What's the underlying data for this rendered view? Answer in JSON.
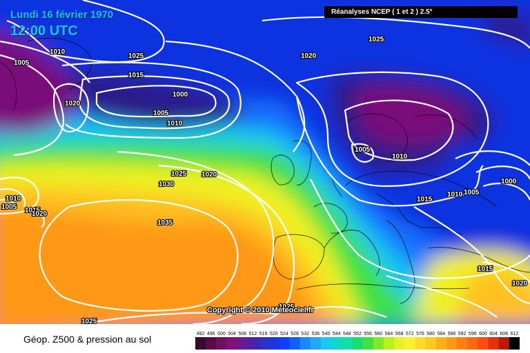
{
  "header": {
    "date": "Lundi 16 février 1970",
    "time": "12:00 UTC",
    "source": "Réanalyses NCEP ( 1 et 2 ) 2.5°"
  },
  "copyright": "Copyright © 2010 Meteociel.fr",
  "footer": {
    "title": "Géop. Z500 & pression au sol"
  },
  "legend": {
    "values": [
      "492",
      "496",
      "500",
      "504",
      "508",
      "512",
      "516",
      "520",
      "524",
      "528",
      "532",
      "536",
      "540",
      "544",
      "548",
      "552",
      "556",
      "560",
      "564",
      "568",
      "572",
      "576",
      "580",
      "584",
      "588",
      "592",
      "596",
      "600",
      "604",
      "608",
      "612"
    ],
    "colors": [
      "#3a0a2a",
      "#5a0d45",
      "#6e1060",
      "#80107a",
      "#6a1a90",
      "#4a22a8",
      "#3030c0",
      "#1a34e0",
      "#0f40f8",
      "#1060ff",
      "#1888ff",
      "#20a8ff",
      "#18c8f0",
      "#10d8c8",
      "#10e0a0",
      "#18e070",
      "#40e040",
      "#80e828",
      "#b8f020",
      "#e8f020",
      "#fff030",
      "#ffdc28",
      "#ffc820",
      "#ffb018",
      "#ff9818",
      "#ff8010",
      "#ff6810",
      "#ff4c10",
      "#e83010",
      "#c01808",
      "#000000"
    ]
  },
  "map": {
    "colors": {
      "purple_low": "#7a107a",
      "indigo": "#2c1c8a",
      "blue": "#1030e0",
      "mid_blue": "#1870ff",
      "cyan": "#18c8f0",
      "green": "#40e040",
      "yellow": "#f0f020",
      "orange": "#ffc020",
      "deep_orange": "#ff9818"
    },
    "isobars": [
      {
        "label": "1005",
        "role": "nw-low-left"
      },
      {
        "label": "1010",
        "role": "nw-trough"
      },
      {
        "label": "1025",
        "role": "north-ridge"
      },
      {
        "label": "1015",
        "role": "north-ridge-inner"
      },
      {
        "label": "1020",
        "role": "greenland-high"
      },
      {
        "label": "1000",
        "role": "atlantic-low-center"
      },
      {
        "label": "1005",
        "role": "atlantic-low"
      },
      {
        "label": "1010",
        "role": "atlantic-low-outer"
      },
      {
        "label": "1020",
        "role": "north-sea"
      },
      {
        "label": "1025",
        "role": "top-right"
      },
      {
        "label": "1005",
        "role": "scandinavia-low"
      },
      {
        "label": "1010",
        "role": "scandinavia-outer"
      },
      {
        "label": "1015",
        "role": "central-europe"
      },
      {
        "label": "1010",
        "role": "east-europe"
      },
      {
        "label": "1005",
        "role": "east-europe-inner"
      },
      {
        "label": "1000",
        "role": "east-low"
      },
      {
        "label": "1025",
        "role": "atlantic-mid"
      },
      {
        "label": "1020",
        "role": "atlantic-mid-2"
      },
      {
        "label": "1030",
        "role": "azores-outer"
      },
      {
        "label": "1035",
        "role": "azores-high"
      },
      {
        "label": "1010",
        "role": "west-edge"
      },
      {
        "label": "1005",
        "role": "west-edge-2"
      },
      {
        "label": "1015",
        "role": "west-edge-3"
      },
      {
        "label": "1020",
        "role": "west-edge-4"
      },
      {
        "label": "1015",
        "role": "mediterranean"
      },
      {
        "label": "1020",
        "role": "south-east"
      },
      {
        "label": "1025",
        "role": "south-bottom"
      },
      {
        "label": "1025",
        "role": "north-africa"
      }
    ]
  }
}
